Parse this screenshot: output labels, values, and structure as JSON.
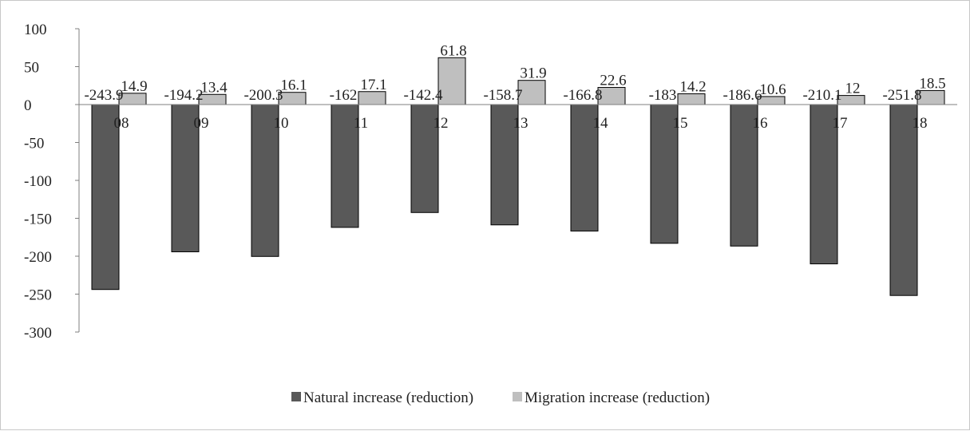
{
  "chart_data": {
    "type": "bar",
    "categories": [
      "08",
      "09",
      "10",
      "11",
      "12",
      "13",
      "14",
      "15",
      "16",
      "17",
      "18"
    ],
    "series": [
      {
        "name": "Natural increase (reduction)",
        "color": "#595959",
        "values": [
          -243.9,
          -194.2,
          -200.3,
          -162,
          -142.4,
          -158.7,
          -166.8,
          -183,
          -186.6,
          -210.1,
          -251.8
        ],
        "labels": [
          "-243.9",
          "-194.2",
          "-200.3",
          "-162",
          "-142.4",
          "-158.7",
          "-166.8",
          "-183",
          "-186.6",
          "-210.1",
          "-251.8"
        ]
      },
      {
        "name": "Migration increase (reduction)",
        "color": "#bfbfbf",
        "values": [
          14.9,
          13.4,
          16.1,
          17.1,
          61.8,
          31.9,
          22.6,
          14.2,
          10.6,
          12,
          18.5
        ],
        "labels": [
          "14.9",
          "13.4",
          "16.1",
          "17.1",
          "61.8",
          "31.9",
          "22.6",
          "14.2",
          "10.6",
          "12",
          "18.5"
        ]
      }
    ],
    "ylim": [
      -300,
      100
    ],
    "yticks": [
      100,
      50,
      0,
      -50,
      -100,
      -150,
      -200,
      -250,
      -300
    ],
    "title": "",
    "xlabel": "",
    "ylabel": "",
    "grid": false,
    "legend_position": "bottom"
  }
}
